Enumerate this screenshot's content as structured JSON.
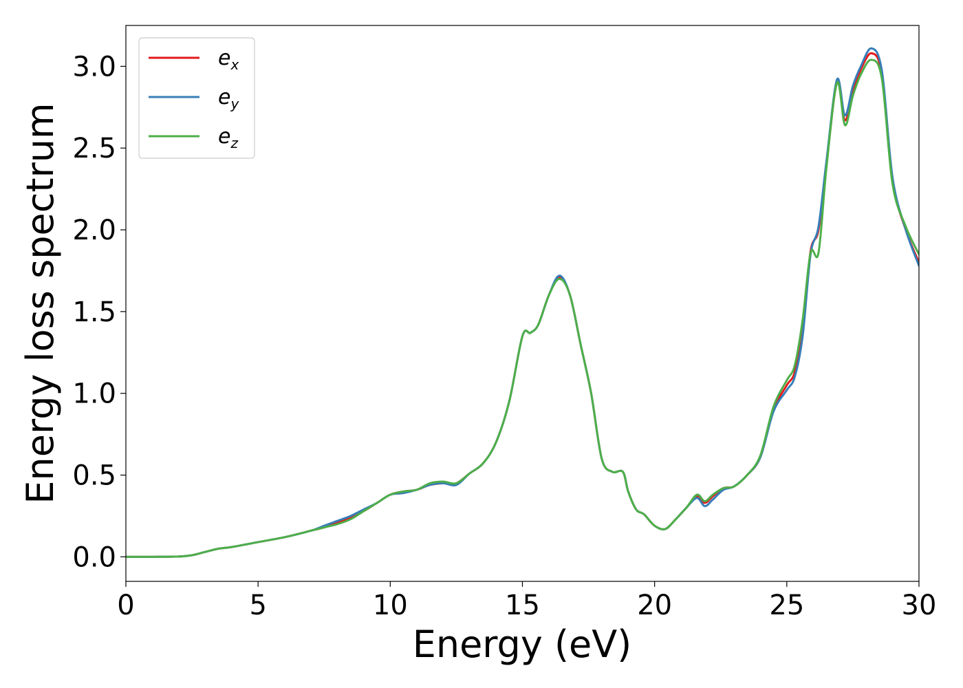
{
  "chart_data": {
    "type": "line",
    "xlabel": "Energy (eV)",
    "ylabel": "Energy loss spectrum",
    "xlim": [
      0,
      30
    ],
    "ylim": [
      -0.15,
      3.25
    ],
    "xticks": [
      "0",
      "5",
      "10",
      "15",
      "20",
      "25",
      "30"
    ],
    "yticks": [
      "0.0",
      "0.5",
      "1.0",
      "1.5",
      "2.0",
      "2.5",
      "3.0"
    ],
    "grid": false,
    "legend_position": "top-left",
    "series": [
      {
        "name": "e_x",
        "base": "e",
        "sub": "x",
        "color": "#e41a1c",
        "x": [
          0,
          1,
          2,
          2.5,
          3,
          3.5,
          4,
          5,
          6,
          7,
          7.5,
          8,
          8.5,
          9,
          9.5,
          10,
          10.5,
          11,
          11.5,
          12,
          12.5,
          13,
          13.5,
          14,
          14.5,
          15,
          15.3,
          15.6,
          16,
          16.4,
          16.8,
          17.2,
          17.6,
          18,
          18.4,
          18.8,
          19,
          19.3,
          19.6,
          20,
          20.4,
          20.8,
          21.2,
          21.6,
          21.9,
          22.2,
          22.6,
          23,
          23.5,
          24,
          24.5,
          25,
          25.3,
          25.6,
          25.9,
          26.2,
          26.5,
          26.9,
          27.2,
          27.5,
          27.8,
          28.2,
          28.6,
          29,
          29.5,
          30
        ],
        "y": [
          0,
          0,
          0.002,
          0.01,
          0.03,
          0.05,
          0.06,
          0.09,
          0.12,
          0.16,
          0.18,
          0.21,
          0.24,
          0.28,
          0.33,
          0.38,
          0.4,
          0.41,
          0.44,
          0.45,
          0.45,
          0.51,
          0.57,
          0.7,
          0.95,
          1.35,
          1.37,
          1.42,
          1.6,
          1.71,
          1.6,
          1.3,
          1.0,
          0.6,
          0.52,
          0.52,
          0.4,
          0.29,
          0.26,
          0.19,
          0.17,
          0.23,
          0.3,
          0.37,
          0.33,
          0.37,
          0.42,
          0.43,
          0.5,
          0.61,
          0.9,
          1.05,
          1.13,
          1.4,
          1.87,
          2.0,
          2.4,
          2.9,
          2.67,
          2.85,
          2.98,
          3.08,
          2.95,
          2.3,
          2.0,
          1.8
        ]
      },
      {
        "name": "e_y",
        "base": "e",
        "sub": "y",
        "color": "#377eb8",
        "x": [
          0,
          1,
          2,
          2.5,
          3,
          3.5,
          4,
          5,
          6,
          7,
          7.5,
          8,
          8.5,
          9,
          9.5,
          10,
          10.5,
          11,
          11.5,
          12,
          12.5,
          13,
          13.5,
          14,
          14.5,
          15,
          15.3,
          15.6,
          16,
          16.4,
          16.8,
          17.2,
          17.6,
          18,
          18.4,
          18.8,
          19,
          19.3,
          19.6,
          20,
          20.4,
          20.8,
          21.2,
          21.6,
          21.9,
          22.2,
          22.6,
          23,
          23.5,
          24,
          24.5,
          25,
          25.3,
          25.6,
          25.9,
          26.2,
          26.5,
          26.9,
          27.2,
          27.5,
          27.8,
          28.2,
          28.6,
          29,
          29.5,
          30
        ],
        "y": [
          0,
          0,
          0.002,
          0.01,
          0.03,
          0.05,
          0.06,
          0.09,
          0.12,
          0.16,
          0.19,
          0.22,
          0.25,
          0.29,
          0.33,
          0.38,
          0.39,
          0.41,
          0.44,
          0.45,
          0.44,
          0.51,
          0.57,
          0.7,
          0.95,
          1.35,
          1.37,
          1.42,
          1.6,
          1.72,
          1.6,
          1.3,
          1.0,
          0.6,
          0.52,
          0.52,
          0.4,
          0.29,
          0.26,
          0.19,
          0.17,
          0.23,
          0.3,
          0.36,
          0.31,
          0.35,
          0.41,
          0.43,
          0.5,
          0.61,
          0.89,
          1.02,
          1.1,
          1.35,
          1.85,
          2.02,
          2.42,
          2.92,
          2.7,
          2.88,
          3.0,
          3.11,
          2.97,
          2.32,
          2.0,
          1.78
        ]
      },
      {
        "name": "e_z",
        "base": "e",
        "sub": "z",
        "color": "#4daf4a",
        "x": [
          0,
          1,
          2,
          2.5,
          3,
          3.5,
          4,
          5,
          6,
          7,
          7.5,
          8,
          8.5,
          9,
          9.5,
          10,
          10.5,
          11,
          11.5,
          12,
          12.5,
          13,
          13.5,
          14,
          14.5,
          15,
          15.3,
          15.6,
          16,
          16.4,
          16.8,
          17.2,
          17.6,
          18,
          18.4,
          18.8,
          19,
          19.3,
          19.6,
          20,
          20.4,
          20.8,
          21.2,
          21.6,
          21.9,
          22.2,
          22.6,
          23,
          23.5,
          24,
          24.5,
          25,
          25.3,
          25.6,
          25.9,
          26.2,
          26.5,
          26.9,
          27.2,
          27.5,
          27.8,
          28.2,
          28.6,
          29,
          29.5,
          30
        ],
        "y": [
          0,
          0,
          0.002,
          0.01,
          0.03,
          0.05,
          0.06,
          0.09,
          0.12,
          0.16,
          0.18,
          0.2,
          0.23,
          0.28,
          0.33,
          0.38,
          0.4,
          0.41,
          0.45,
          0.46,
          0.45,
          0.51,
          0.57,
          0.7,
          0.95,
          1.35,
          1.37,
          1.42,
          1.6,
          1.7,
          1.6,
          1.3,
          1.0,
          0.6,
          0.52,
          0.52,
          0.4,
          0.29,
          0.26,
          0.19,
          0.17,
          0.23,
          0.3,
          0.38,
          0.34,
          0.38,
          0.42,
          0.43,
          0.5,
          0.62,
          0.92,
          1.08,
          1.17,
          1.45,
          1.86,
          1.86,
          2.38,
          2.9,
          2.64,
          2.82,
          2.95,
          3.04,
          2.92,
          2.28,
          2.02,
          1.85
        ]
      }
    ]
  }
}
